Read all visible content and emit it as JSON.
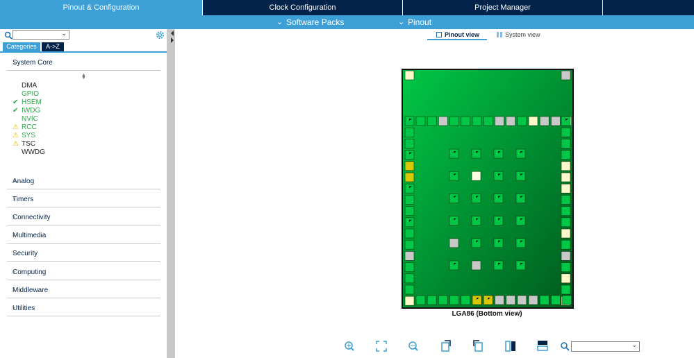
{
  "top_tabs": [
    "Pinout & Configuration",
    "Clock Configuration",
    "Project Manager"
  ],
  "sub_bar": [
    "Software Packs",
    "Pinout"
  ],
  "sidebar": {
    "mode_tabs": [
      "Categories",
      "A->Z"
    ],
    "open_category": "System Core",
    "items": [
      {
        "label": "DMA",
        "enabled": false,
        "status": null
      },
      {
        "label": "GPIO",
        "enabled": true,
        "status": null
      },
      {
        "label": "HSEM",
        "enabled": true,
        "status": "check"
      },
      {
        "label": "IWDG",
        "enabled": true,
        "status": "check"
      },
      {
        "label": "NVIC",
        "enabled": true,
        "status": null
      },
      {
        "label": "RCC",
        "enabled": true,
        "status": "warning"
      },
      {
        "label": "SYS",
        "enabled": true,
        "status": "warning"
      },
      {
        "label": "TSC",
        "enabled": false,
        "status": "warning"
      },
      {
        "label": "WWDG",
        "enabled": false,
        "status": null
      }
    ],
    "categories": [
      "Analog",
      "Timers",
      "Connectivity",
      "Multimedia",
      "Security",
      "Computing",
      "Middleware",
      "Utilities"
    ]
  },
  "view_tabs": [
    "Pinout view",
    "System view"
  ],
  "chip_label": "LGA86 (Bottom view)"
}
